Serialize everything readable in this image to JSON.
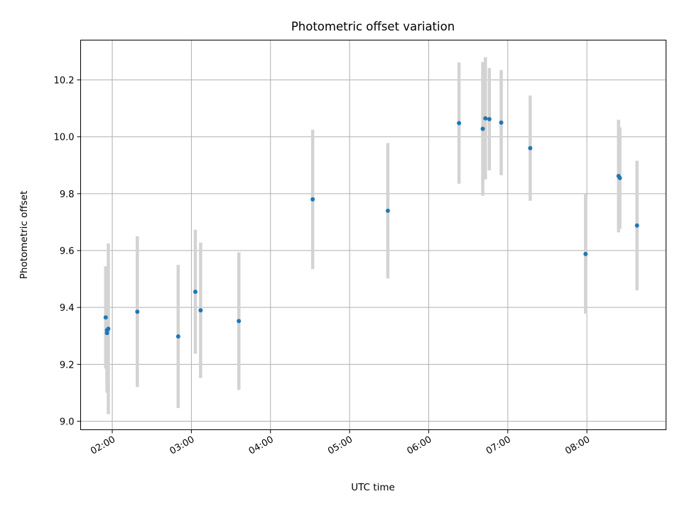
{
  "chart_data": {
    "type": "scatter",
    "title": "Photometric offset variation",
    "xlabel": "UTC time",
    "ylabel": "Photometric offset",
    "x_axis": {
      "type": "time",
      "range": [
        "01:36",
        "09:00"
      ],
      "ticks": [
        "02:00",
        "03:00",
        "04:00",
        "05:00",
        "06:00",
        "07:00",
        "08:00"
      ]
    },
    "y_axis": {
      "range": [
        8.97,
        10.34
      ],
      "ticks": [
        "9.0",
        "9.2",
        "9.4",
        "9.6",
        "9.8",
        "10.0",
        "10.2"
      ]
    },
    "grid": true,
    "colors": {
      "points": "#1f77b4",
      "error_bars": "#d3d3d3",
      "grid": "#b0b0b0"
    },
    "points": [
      {
        "time": "01:55",
        "y": 9.365,
        "err": 0.18
      },
      {
        "time": "01:56",
        "y": 9.32,
        "err": 0.19
      },
      {
        "time": "01:56",
        "y": 9.31,
        "err": 0.21
      },
      {
        "time": "01:57",
        "y": 9.325,
        "err": 0.3
      },
      {
        "time": "02:19",
        "y": 9.385,
        "err": 0.265
      },
      {
        "time": "02:50",
        "y": 9.298,
        "err": 0.252
      },
      {
        "time": "03:03",
        "y": 9.455,
        "err": 0.218
      },
      {
        "time": "03:07",
        "y": 9.39,
        "err": 0.238
      },
      {
        "time": "03:36",
        "y": 9.352,
        "err": 0.242
      },
      {
        "time": "04:32",
        "y": 9.78,
        "err": 0.245
      },
      {
        "time": "05:29",
        "y": 9.74,
        "err": 0.238
      },
      {
        "time": "06:23",
        "y": 10.048,
        "err": 0.213
      },
      {
        "time": "06:41",
        "y": 10.028,
        "err": 0.235
      },
      {
        "time": "06:43",
        "y": 10.065,
        "err": 0.215
      },
      {
        "time": "06:46",
        "y": 10.062,
        "err": 0.18
      },
      {
        "time": "06:55",
        "y": 10.05,
        "err": 0.185
      },
      {
        "time": "07:17",
        "y": 9.96,
        "err": 0.185
      },
      {
        "time": "07:59",
        "y": 9.588,
        "err": 0.21
      },
      {
        "time": "08:24",
        "y": 9.862,
        "err": 0.198
      },
      {
        "time": "08:25",
        "y": 9.855,
        "err": 0.178
      },
      {
        "time": "08:38",
        "y": 9.688,
        "err": 0.228
      }
    ]
  }
}
